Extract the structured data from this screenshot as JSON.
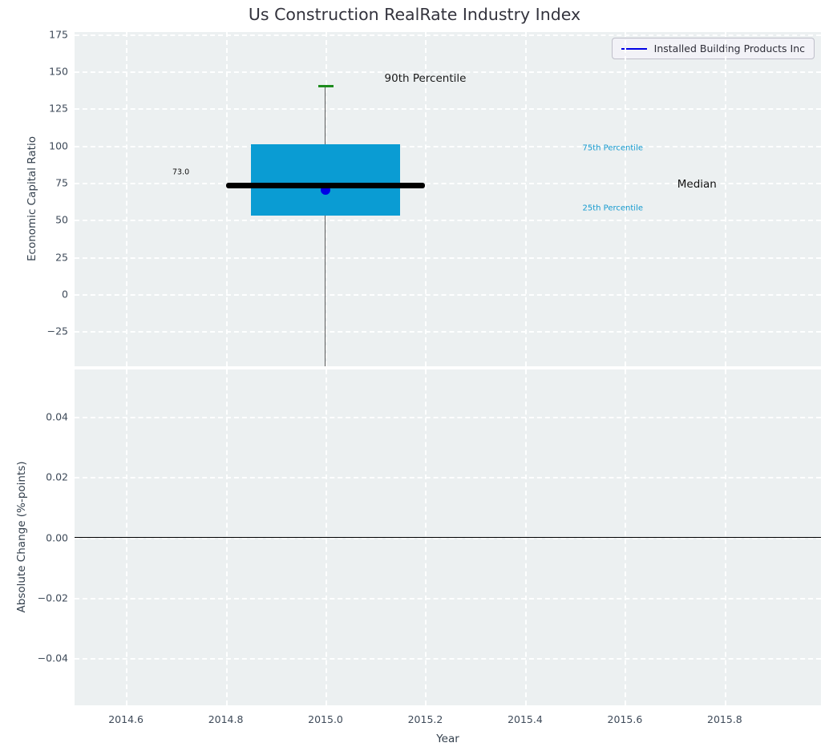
{
  "figure": {
    "title": "Us Construction RealRate Industry Index",
    "background": "#FFFFFF",
    "axes_background": "#ECF0F1",
    "grid_color": "#FFFFFF",
    "tick_color": "#3E4A59"
  },
  "legend": {
    "label": "Installed Building Products Inc",
    "line_color": "#0000E6",
    "position": "upper right"
  },
  "chart_data": [
    {
      "type": "boxplot",
      "title": "Us Construction RealRate Industry Index",
      "ylabel": "Economic Capital Ratio",
      "grid": "white dashed on light gray",
      "xlim": [
        2014.497,
        2015.993
      ],
      "ylim": [
        -48.5,
        176.5
      ],
      "yticks": [
        {
          "v": 175,
          "label": "175"
        },
        {
          "v": 150,
          "label": "150"
        },
        {
          "v": 125,
          "label": "125"
        },
        {
          "v": 100,
          "label": "100"
        },
        {
          "v": 75,
          "label": "75"
        },
        {
          "v": 50,
          "label": "50"
        },
        {
          "v": 25,
          "label": "25"
        },
        {
          "v": 0,
          "label": "0"
        },
        {
          "v": -25,
          "label": "−25"
        }
      ],
      "box": {
        "x_center": 2015.0,
        "x_left": 2014.85,
        "x_right": 2015.15,
        "p25": 53,
        "median": 73.0,
        "p75": 101,
        "p90": 140,
        "whisker_low_clipped_below_axis": true,
        "median_x_left": 2014.8,
        "median_x_right": 2015.2,
        "box_color": "#0A9CD3",
        "median_color": "#000000",
        "cap_color": "#1E8C1E",
        "whisker_color": "#5A5A5A"
      },
      "point": {
        "series": "Installed Building Products Inc",
        "x": 2015.0,
        "y": 70,
        "color": "#0000E6"
      },
      "annotations": [
        {
          "text": "90th Percentile",
          "x": 2015.2,
          "y": 145,
          "color": "#1a1a1a",
          "size": 13.5,
          "anchor": "middle"
        },
        {
          "text": "75th Percentile",
          "x": 2015.515,
          "y": 98,
          "color": "#149ACF",
          "size": 10,
          "anchor": "start"
        },
        {
          "text": "25th Percentile",
          "x": 2015.515,
          "y": 58,
          "color": "#149ACF",
          "size": 10,
          "anchor": "start"
        },
        {
          "text": "Median",
          "x": 2015.705,
          "y": 74,
          "color": "#111111",
          "size": 13.5,
          "anchor": "start"
        },
        {
          "text": "73.0",
          "x": 2014.71,
          "y": 82,
          "color": "#111111",
          "size": 9.5,
          "anchor": "middle"
        }
      ]
    },
    {
      "type": "line",
      "ylabel": "Absolute Change (%-points)",
      "xlabel": "Year",
      "xlim": [
        2014.497,
        2015.993
      ],
      "ylim": [
        -0.0555,
        0.0555
      ],
      "yticks": [
        {
          "v": 0.04,
          "label": "0.04"
        },
        {
          "v": 0.02,
          "label": "0.02"
        },
        {
          "v": 0.0,
          "label": "0.00"
        },
        {
          "v": -0.02,
          "label": "−0.02"
        },
        {
          "v": -0.04,
          "label": "−0.04"
        }
      ],
      "xticks": [
        {
          "v": 2014.6,
          "label": "2014.6"
        },
        {
          "v": 2014.8,
          "label": "2014.8"
        },
        {
          "v": 2015.0,
          "label": "2015.0"
        },
        {
          "v": 2015.2,
          "label": "2015.2"
        },
        {
          "v": 2015.4,
          "label": "2015.4"
        },
        {
          "v": 2015.6,
          "label": "2015.6"
        },
        {
          "v": 2015.8,
          "label": "2015.8"
        }
      ],
      "zero_line": 0.0,
      "series": []
    }
  ]
}
